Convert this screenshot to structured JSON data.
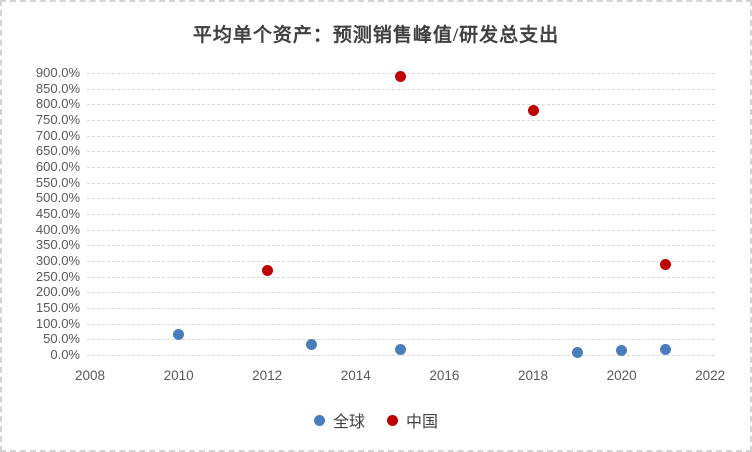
{
  "chart_data": {
    "type": "scatter",
    "title": "平均单个资产：预测销售峰值/研发总支出",
    "xlabel": "",
    "ylabel": "",
    "grid": true,
    "legend_position": "bottom",
    "x_axis": {
      "min": 2008,
      "max": 2022,
      "tick_step": 2,
      "tick_labels": [
        "2008",
        "2010",
        "2012",
        "2014",
        "2016",
        "2018",
        "2020",
        "2022"
      ]
    },
    "y_axis": {
      "min": 0,
      "max": 900,
      "tick_step": 50,
      "unit": "%",
      "tick_labels": [
        "0.0%",
        "50.0%",
        "100.0%",
        "150.0%",
        "200.0%",
        "250.0%",
        "300.0%",
        "350.0%",
        "400.0%",
        "450.0%",
        "500.0%",
        "550.0%",
        "600.0%",
        "650.0%",
        "700.0%",
        "750.0%",
        "800.0%",
        "850.0%",
        "900.0%"
      ]
    },
    "series": [
      {
        "name": "全球",
        "color": "#4a7ebb",
        "points": [
          {
            "x": 2010,
            "y": 65
          },
          {
            "x": 2013,
            "y": 35
          },
          {
            "x": 2015,
            "y": 16
          },
          {
            "x": 2019,
            "y": 9
          },
          {
            "x": 2020,
            "y": 13
          },
          {
            "x": 2021,
            "y": 18
          }
        ]
      },
      {
        "name": "中国",
        "color": "#c00000",
        "points": [
          {
            "x": 2012,
            "y": 270
          },
          {
            "x": 2015,
            "y": 890
          },
          {
            "x": 2018,
            "y": 780
          },
          {
            "x": 2021,
            "y": 290
          }
        ]
      }
    ],
    "colors": {
      "gridline": "#d9d9d9",
      "tick_label": "#595959",
      "title": "#404040",
      "frame_border": "#d4d4d4"
    }
  }
}
